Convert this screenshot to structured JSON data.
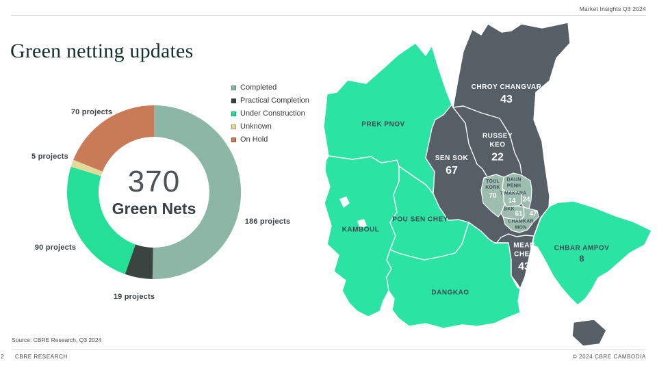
{
  "header": {
    "top_right": "Market Insights Q3 2024",
    "title": "Green netting updates"
  },
  "chart_data": {
    "type": "pie",
    "subtype": "donut",
    "title": "Green netting updates",
    "center_value": "370",
    "center_label": "Green Nets",
    "total": 370,
    "legend_position": "right-top",
    "segments": [
      {
        "label": "Completed",
        "value": 186,
        "annotation": "186 projects",
        "color": "#8CB6A6"
      },
      {
        "label": "Practical Completion",
        "value": 19,
        "annotation": "19 projects",
        "color": "#3C4442"
      },
      {
        "label": "Under Construction",
        "value": 90,
        "annotation": "90 projects",
        "color": "#25DF96"
      },
      {
        "label": "Unknown",
        "value": 5,
        "annotation": "5 projects",
        "color": "#E2DA9D"
      },
      {
        "label": "On Hold",
        "value": 70,
        "annotation": "70 projects",
        "color": "#C97A57"
      }
    ]
  },
  "map": {
    "colors": {
      "bright_green": "#2BE4A3",
      "dark_gray": "#565E66",
      "sage_green": "#9DBDAF",
      "border": "#FFFFFF"
    },
    "districts": [
      {
        "id": "prek-pnov",
        "name": "PREK PNOV"
      },
      {
        "id": "kamboul",
        "name": "KAMBOUL"
      },
      {
        "id": "pou-sen-chey",
        "name": "POU SEN CHEY"
      },
      {
        "id": "dangkao",
        "name": "DANGKAO"
      },
      {
        "id": "chbar-ampov",
        "name": "CHBAR AMPOV",
        "value": "8"
      },
      {
        "id": "chroy-changvar",
        "name": "CHROY CHANGVAR",
        "value": "43"
      },
      {
        "id": "russey-keo",
        "name": "RUSSEY KEO",
        "value": "22"
      },
      {
        "id": "sen-sok",
        "name": "SEN SOK",
        "value": "67"
      },
      {
        "id": "mean-chey",
        "name": "MEAN CHEY",
        "value": "43"
      },
      {
        "id": "toul-kork",
        "name": "TOUL KORK",
        "value": "70"
      },
      {
        "id": "daun-penh",
        "name": "DAUN PENH",
        "value": "24"
      },
      {
        "id": "7-makara",
        "name": "7 MAKARA",
        "value": "14"
      },
      {
        "id": "bkk",
        "name": "BKK",
        "value": "61"
      },
      {
        "id": "chamkar-mon",
        "name": "CHAMKAR MON",
        "value": "47"
      }
    ]
  },
  "footer": {
    "source": "Source: CBRE Research, Q3 2024",
    "page_number": "2",
    "brand": "CBRE RESEARCH",
    "copyright": "© 2024 CBRE CAMBODIA"
  }
}
